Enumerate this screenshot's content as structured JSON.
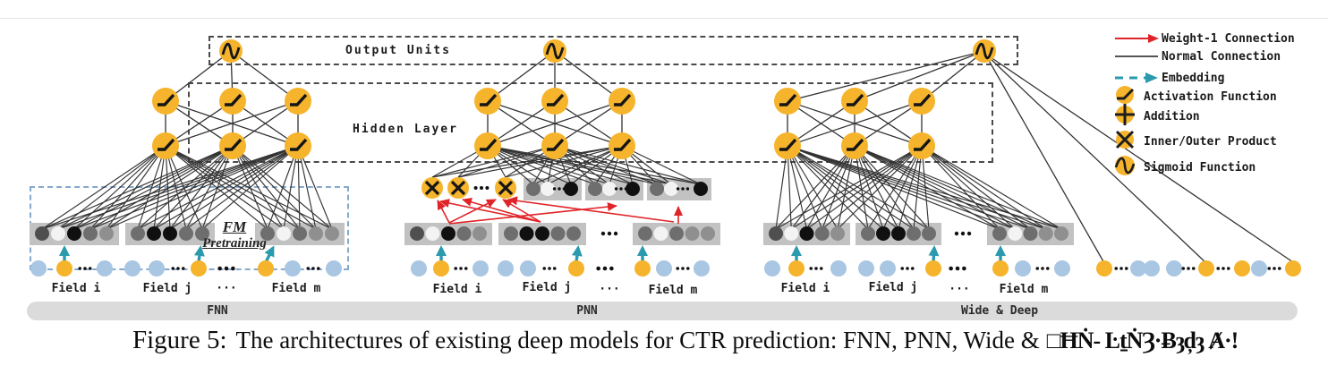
{
  "figure": {
    "output_units_label": "Output Units",
    "hidden_layer_label": "Hidden Layer",
    "fm_pretraining": {
      "line1": "FM",
      "line2": "Pretraining"
    },
    "models": [
      {
        "name": "FNN",
        "fields": [
          "Field i",
          "Field j",
          "···",
          "Field m"
        ]
      },
      {
        "name": "PNN",
        "fields": [
          "Field i",
          "Field j",
          "···",
          "Field m"
        ]
      },
      {
        "name": "Wide & Deep",
        "fields": [
          "Field i",
          "Field j",
          "···",
          "Field m"
        ]
      }
    ]
  },
  "legend": {
    "items": [
      {
        "icon": "weight1-connection-arrow",
        "label": "Weight-1 Connection"
      },
      {
        "icon": "normal-connection-line",
        "label": "Normal Connection"
      },
      {
        "icon": "embedding-arrow",
        "label": "Embedding"
      },
      {
        "icon": "activation-function-node",
        "label": "Activation Function"
      },
      {
        "icon": "addition-node",
        "label": "Addition"
      },
      {
        "icon": "inner-outer-product-node",
        "label": "Inner/Outer Product"
      },
      {
        "icon": "sigmoid-function-node",
        "label": "Sigmoid Function"
      }
    ]
  },
  "caption": {
    "figure_label": "Figure 5:",
    "text": "The architectures of existing deep models for CTR prediction: FNN, PNN, Wide &",
    "garbled_suffix": "□ĦṄ- ĿṯṄȜ·Ƀȝḑȝ Ⱥ·ǃ"
  },
  "colors": {
    "node_orange": "#f5b42c",
    "input_blue": "#a9c6e3",
    "embedding_teal": "#2b9aae",
    "weight1_red": "#e02428",
    "connection_gray": "#333333",
    "band_gray": "#dbdbdb",
    "embedding_box_gray": "#c2c2c2"
  }
}
